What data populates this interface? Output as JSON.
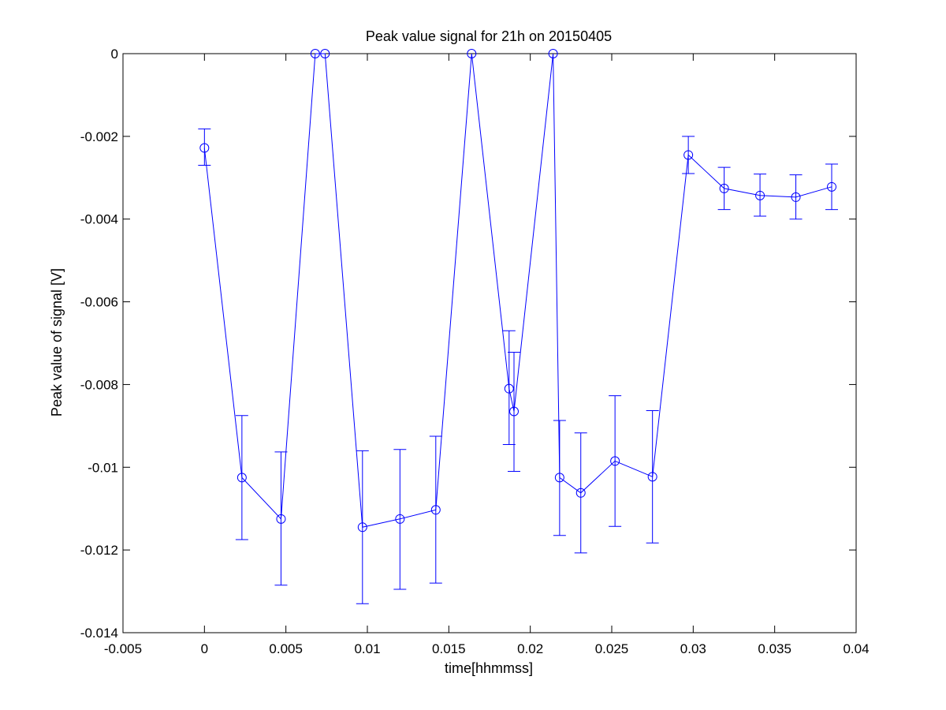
{
  "chart_data": {
    "type": "scatter",
    "title": "Peak value signal for 21h on 20150405",
    "xlabel": "time[hhmmss]",
    "ylabel": "Peak value of signal [V]",
    "xlim": [
      -0.005,
      0.04
    ],
    "ylim": [
      -0.014,
      0
    ],
    "xticks": [
      -0.005,
      0,
      0.005,
      0.01,
      0.015,
      0.02,
      0.025,
      0.03,
      0.035,
      0.04
    ],
    "xtick_labels": [
      "-0.005",
      "0",
      "0.005",
      "0.01",
      "0.015",
      "0.02",
      "0.025",
      "0.03",
      "0.035",
      "0.04"
    ],
    "yticks": [
      -0.014,
      -0.012,
      -0.01,
      -0.008,
      -0.006,
      -0.004,
      -0.002,
      0
    ],
    "ytick_labels": [
      "-0.014",
      "-0.012",
      "-0.01",
      "-0.008",
      "-0.006",
      "-0.004",
      "-0.002",
      "0"
    ],
    "grid": false,
    "legend": "none",
    "line_style": "line with circle markers and error bars",
    "series": [
      {
        "color": "#0000ff",
        "x": [
          0,
          0.0023,
          0.0047,
          0.0068,
          0.0074,
          0.0097,
          0.012,
          0.0142,
          0.0164,
          0.0187,
          0.019,
          0.0214,
          0.0218,
          0.0231,
          0.0252,
          0.0275,
          0.0297,
          0.0319,
          0.0341,
          0.0363,
          0.0385
        ],
        "y": [
          -0.00228,
          -0.01025,
          -0.01125,
          0,
          0,
          -0.01145,
          -0.01125,
          -0.01103,
          0,
          -0.0081,
          -0.00865,
          0,
          -0.01025,
          -0.01062,
          -0.00985,
          -0.01023,
          -0.00245,
          -0.00326,
          -0.00343,
          -0.00347,
          -0.00322
        ],
        "y_low": [
          -0.0027,
          -0.01175,
          -0.01285,
          null,
          null,
          -0.0133,
          -0.01295,
          -0.0128,
          null,
          -0.00945,
          -0.0101,
          null,
          -0.01165,
          -0.01207,
          -0.01143,
          -0.01183,
          -0.0029,
          -0.00377,
          -0.00393,
          -0.004,
          -0.00377
        ],
        "y_high": [
          -0.00182,
          -0.00875,
          -0.00963,
          null,
          null,
          -0.0096,
          -0.00957,
          -0.00925,
          null,
          -0.0067,
          -0.00722,
          null,
          -0.00887,
          -0.00917,
          -0.00827,
          -0.00863,
          -0.002,
          -0.00275,
          -0.00291,
          -0.00293,
          -0.00267
        ]
      }
    ]
  }
}
